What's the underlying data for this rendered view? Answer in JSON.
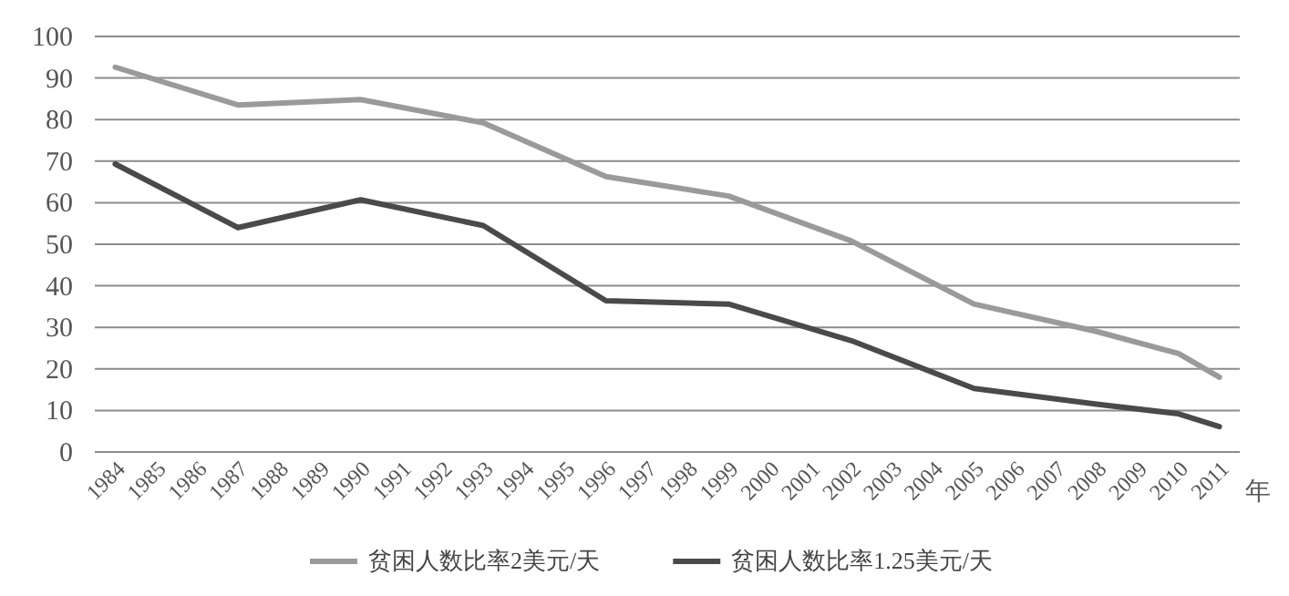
{
  "chart_data": {
    "type": "line",
    "xlabel": "年",
    "series": [
      {
        "name": "贫困人数比率2美元/天",
        "color": "#9a9a9a",
        "x": [
          1984,
          1987,
          1990,
          1993,
          1996,
          1999,
          2002,
          2005,
          2008,
          2010,
          2011
        ],
        "values": [
          92.6,
          83.5,
          84.8,
          79.2,
          66.3,
          61.6,
          50.8,
          35.6,
          29,
          23.7,
          18
        ]
      },
      {
        "name": "贫困人数比率1.25美元/天",
        "color": "#4a4a4a",
        "x": [
          1984,
          1987,
          1990,
          1993,
          1996,
          1999,
          2002,
          2005,
          2008,
          2010,
          2011
        ],
        "values": [
          69.3,
          54,
          60.7,
          54.5,
          36.4,
          35.6,
          26.8,
          15.3,
          11.5,
          9.2,
          6.1
        ]
      }
    ],
    "xlim": [
      1983.5,
      2011.5
    ],
    "xticks": [
      1984,
      1985,
      1986,
      1987,
      1988,
      1989,
      1990,
      1991,
      1992,
      1993,
      1994,
      1995,
      1996,
      1997,
      1998,
      1999,
      2000,
      2001,
      2002,
      2003,
      2004,
      2005,
      2006,
      2007,
      2008,
      2009,
      2010,
      2011
    ],
    "ylim": [
      0,
      100
    ],
    "yticks": [
      0,
      10,
      20,
      30,
      40,
      50,
      60,
      70,
      80,
      90,
      100
    ],
    "grid": "y",
    "legend": "bottom"
  }
}
